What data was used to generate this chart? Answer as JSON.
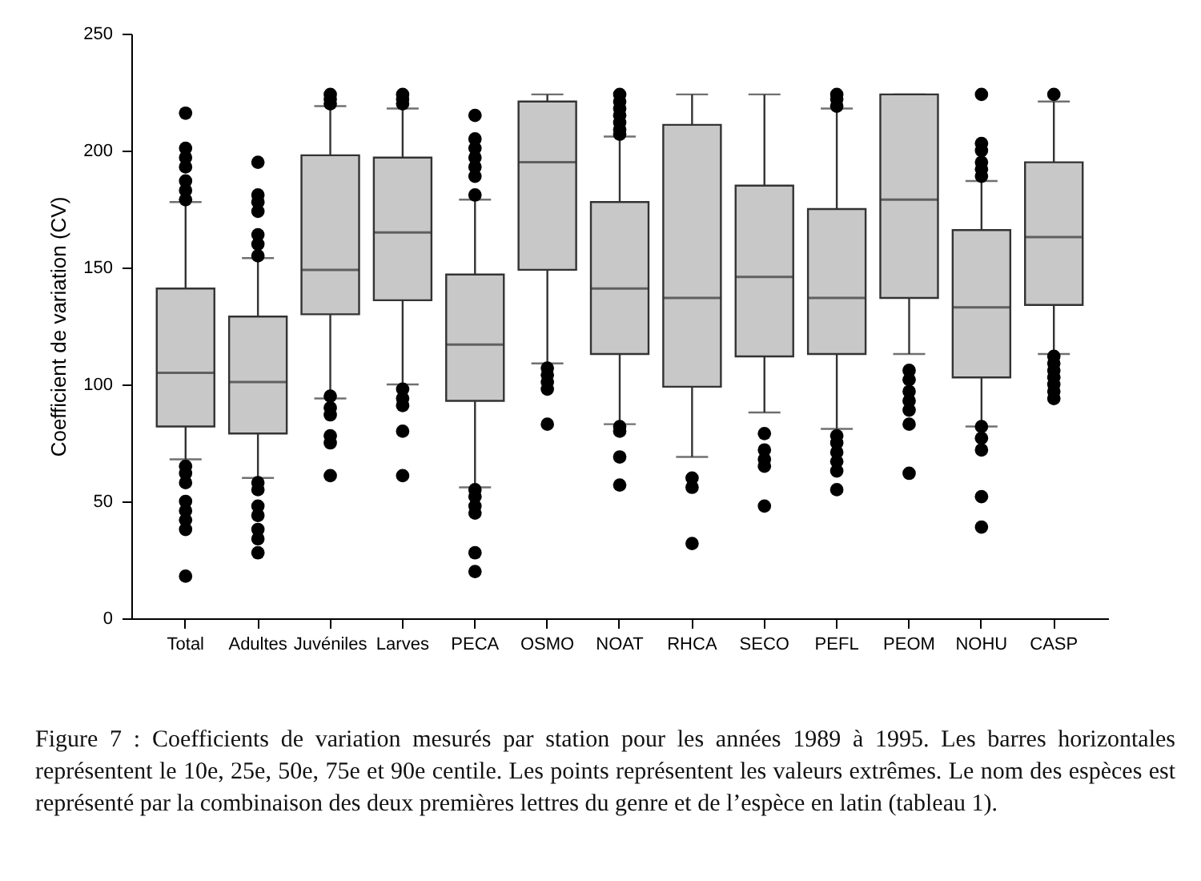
{
  "chart_data": {
    "type": "box",
    "ylabel": "Coefficient de variation (CV)",
    "categories": [
      "Total",
      "Adultes",
      "Juvéniles",
      "Larves",
      "PECA",
      "OSMO",
      "NOAT",
      "RHCA",
      "SECO",
      "PEFL",
      "PEOM",
      "NOHU",
      "CASP"
    ],
    "color": "#c8c8c8",
    "ylim": [
      0,
      250
    ],
    "yticks": [
      0,
      50,
      100,
      150,
      200,
      250
    ],
    "grid": false,
    "boxes": [
      {
        "low": 68,
        "q1": 82,
        "median": 105,
        "q3": 141,
        "high": 178,
        "outliers": [
          216,
          201,
          197,
          193,
          187,
          183,
          179,
          65,
          62,
          58,
          50,
          46,
          42,
          38,
          18
        ]
      },
      {
        "low": 60,
        "q1": 79,
        "median": 101,
        "q3": 129,
        "high": 154,
        "outliers": [
          195,
          181,
          178,
          174,
          164,
          160,
          155,
          58,
          55,
          48,
          44,
          38,
          34,
          28
        ]
      },
      {
        "low": 94,
        "q1": 130,
        "median": 149,
        "q3": 198,
        "high": 219,
        "outliers": [
          224,
          222,
          220,
          95,
          90,
          87,
          78,
          75,
          61
        ]
      },
      {
        "low": 100,
        "q1": 136,
        "median": 165,
        "q3": 197,
        "high": 218,
        "outliers": [
          224,
          222,
          220,
          98,
          94,
          91,
          80,
          61
        ]
      },
      {
        "low": 56,
        "q1": 93,
        "median": 117,
        "q3": 147,
        "high": 179,
        "outliers": [
          215,
          205,
          201,
          197,
          193,
          189,
          181,
          55,
          52,
          48,
          45,
          28,
          20
        ]
      },
      {
        "low": 109,
        "q1": 149,
        "median": 195,
        "q3": 221,
        "high": 224,
        "outliers": [
          107,
          104,
          101,
          98,
          83
        ]
      },
      {
        "low": 83,
        "q1": 113,
        "median": 141,
        "q3": 178,
        "high": 206,
        "outliers": [
          224,
          221,
          218,
          215,
          212,
          209,
          207,
          82,
          80,
          69,
          57
        ]
      },
      {
        "low": 69,
        "q1": 99,
        "median": 137,
        "q3": 211,
        "high": 224,
        "outliers": [
          60,
          56,
          32
        ]
      },
      {
        "low": 88,
        "q1": 112,
        "median": 146,
        "q3": 185,
        "high": 224,
        "outliers": [
          79,
          72,
          68,
          65,
          48
        ]
      },
      {
        "low": 81,
        "q1": 113,
        "median": 137,
        "q3": 175,
        "high": 218,
        "outliers": [
          224,
          222,
          219,
          78,
          75,
          71,
          67,
          63,
          55
        ]
      },
      {
        "low": 113,
        "q1": 137,
        "median": 179,
        "q3": 224,
        "high": 224,
        "outliers": [
          106,
          102,
          97,
          93,
          89,
          83,
          62
        ]
      },
      {
        "low": 82,
        "q1": 103,
        "median": 133,
        "q3": 166,
        "high": 187,
        "outliers": [
          224,
          203,
          200,
          195,
          192,
          189,
          82,
          77,
          72,
          52,
          39
        ]
      },
      {
        "low": 113,
        "q1": 134,
        "median": 163,
        "q3": 195,
        "high": 221,
        "outliers": [
          224,
          112,
          109,
          106,
          103,
          100,
          97,
          94
        ]
      }
    ],
    "annotations": [
      "Figure 7 : Coefficients de variation mesurés par station pour les années 1989 à 1995. Les barres horizontales représentent le 10e, 25e, 50e, 75e et 90e centile. Les points représentent les valeurs extrêmes. Le nom des espèces est représenté par la combinaison des deux premières lettres du genre et de l’espèce en latin (tableau 1)."
    ]
  }
}
